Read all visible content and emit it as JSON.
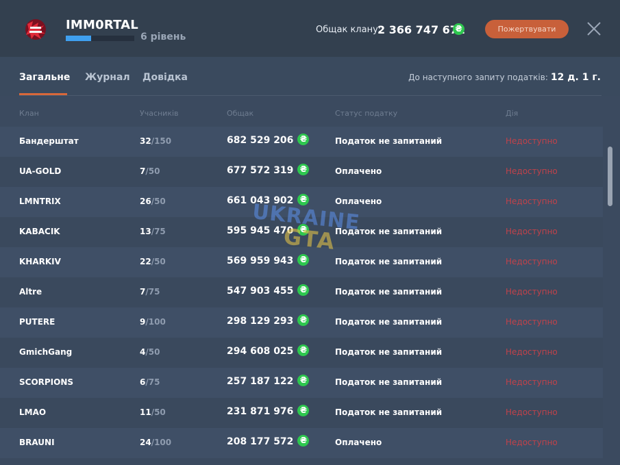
{
  "header": {
    "clan_name": "IMM0RTAL",
    "level_text": "6 рівень",
    "level_progress": 0.37,
    "bank_label": "Общак клану:",
    "bank_value": "2 366 747 672",
    "currency_symbol": "₴",
    "donate_label": "Пожертвувати",
    "logo_icon": "clan-logo-emblem",
    "close_icon": "close-icon"
  },
  "tabs": [
    {
      "label": "Загальне",
      "active": true
    },
    {
      "label": "Журнал",
      "active": false
    },
    {
      "label": "Довідка",
      "active": false
    }
  ],
  "tax_timer": {
    "label": "До наступного запиту податків:",
    "value": "12 д. 1 г."
  },
  "table": {
    "headers": {
      "clan": "Клан",
      "members": "Учасників",
      "bank": "Общак",
      "status": "Статус податку",
      "action": "Дія"
    },
    "rows": [
      {
        "name": "Бандерштат",
        "members": "32",
        "max": "/150",
        "bank": "682 529 206",
        "status": "Податок не запитаний",
        "action": "Недоступно"
      },
      {
        "name": "UA-GOLD",
        "members": "7",
        "max": "/50",
        "bank": "677 572 319",
        "status": "Оплачено",
        "action": "Недоступно"
      },
      {
        "name": "LMNTRIX",
        "members": "26",
        "max": "/50",
        "bank": "661 043 902",
        "status": "Оплачено",
        "action": "Недоступно"
      },
      {
        "name": "KABACIK",
        "members": "13",
        "max": "/75",
        "bank": "595 945 470",
        "status": "Податок не запитаний",
        "action": "Недоступно"
      },
      {
        "name": "KHARKIV",
        "members": "22",
        "max": "/50",
        "bank": "569 959 943",
        "status": "Податок не запитаний",
        "action": "Недоступно"
      },
      {
        "name": "Altre",
        "members": "7",
        "max": "/75",
        "bank": "547 903 455",
        "status": "Податок не запитаний",
        "action": "Недоступно"
      },
      {
        "name": "PUTERE",
        "members": "9",
        "max": "/100",
        "bank": "298 129 293",
        "status": "Податок не запитаний",
        "action": "Недоступно"
      },
      {
        "name": "GmichGang",
        "members": "4",
        "max": "/50",
        "bank": "294 608 025",
        "status": "Податок не запитаний",
        "action": "Недоступно"
      },
      {
        "name": "SCORPIONS",
        "members": "6",
        "max": "/75",
        "bank": "257 187 122",
        "status": "Податок не запитаний",
        "action": "Недоступно"
      },
      {
        "name": "LMAO",
        "members": "11",
        "max": "/50",
        "bank": "231 871 976",
        "status": "Податок не запитаний",
        "action": "Недоступно"
      },
      {
        "name": "BRAUNI",
        "members": "24",
        "max": "/100",
        "bank": "208 177 572",
        "status": "Оплачено",
        "action": "Недоступно"
      }
    ]
  },
  "watermark": {
    "line1": "UKRAINE",
    "line2": "GTA"
  },
  "colors": {
    "accent": "#d9683a",
    "currency": "#2ec74f",
    "unavailable": "#c0424a",
    "level_bar": "#3fa0f0"
  }
}
